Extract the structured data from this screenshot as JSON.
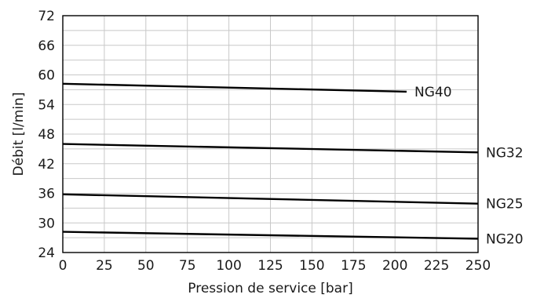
{
  "chart_data": {
    "type": "line",
    "title": "",
    "xlabel": "Pression de service [bar]",
    "ylabel": "Débit [l/min]",
    "xlim": [
      0,
      250
    ],
    "ylim": [
      24,
      72
    ],
    "xticks": [
      0,
      25,
      50,
      75,
      100,
      125,
      150,
      175,
      200,
      225,
      250
    ],
    "yticks": [
      24,
      30,
      36,
      42,
      48,
      54,
      60,
      66,
      72
    ],
    "grid": true,
    "legend": "none",
    "colors": {
      "line": "#000000",
      "grid": "#c8c8c8"
    },
    "series": [
      {
        "name": "NG40",
        "x": [
          0,
          207
        ],
        "y": [
          58.2,
          56.6
        ]
      },
      {
        "name": "NG32",
        "x": [
          0,
          250
        ],
        "y": [
          46.0,
          44.3
        ]
      },
      {
        "name": "NG25",
        "x": [
          0,
          250
        ],
        "y": [
          35.8,
          33.9
        ]
      },
      {
        "name": "NG20",
        "x": [
          0,
          250
        ],
        "y": [
          28.2,
          26.8
        ]
      }
    ]
  }
}
